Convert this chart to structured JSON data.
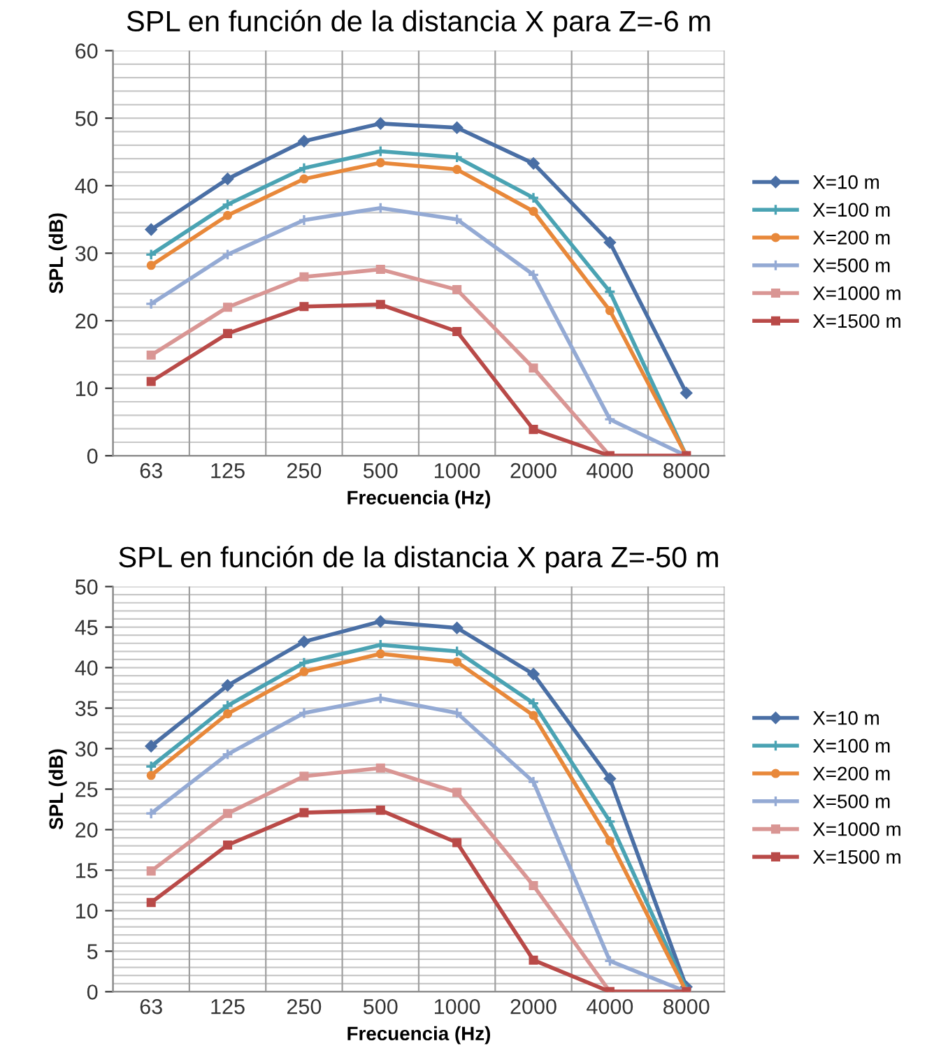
{
  "chart_data": [
    {
      "type": "line",
      "title": "SPL en función de la distancia X para Z=-6 m",
      "xlabel": "Frecuencia (Hz)",
      "ylabel": "SPL (dB)",
      "categories": [
        "63",
        "125",
        "250",
        "500",
        "1000",
        "2000",
        "4000",
        "8000"
      ],
      "ylim": [
        0,
        60
      ],
      "yticks": [
        0,
        {
          "value": 2,
          "label": null
        },
        {
          "value": 4,
          "label": null
        },
        {
          "value": 6,
          "label": null
        },
        {
          "value": 8,
          "label": null
        },
        10,
        {
          "value": 12,
          "label": null
        },
        {
          "value": 14,
          "label": null
        },
        {
          "value": 16,
          "label": null
        },
        {
          "value": 18,
          "label": null
        },
        20,
        {
          "value": 22,
          "label": null
        },
        {
          "value": 24,
          "label": null
        },
        {
          "value": 26,
          "label": null
        },
        {
          "value": 28,
          "label": null
        },
        30,
        {
          "value": 32,
          "label": null
        },
        {
          "value": 34,
          "label": null
        },
        {
          "value": 36,
          "label": null
        },
        {
          "value": 38,
          "label": null
        },
        40,
        {
          "value": 42,
          "label": null
        },
        {
          "value": 44,
          "label": null
        },
        {
          "value": 46,
          "label": null
        },
        {
          "value": 48,
          "label": null
        },
        50,
        {
          "value": 52,
          "label": null
        },
        {
          "value": 54,
          "label": null
        },
        {
          "value": 56,
          "label": null
        },
        {
          "value": 58,
          "label": null
        },
        60
      ],
      "grid": true,
      "legend": "right",
      "series": [
        {
          "name": "X=10 m",
          "color": "#4a6fa5",
          "marker": "diamond",
          "values": [
            33.5,
            41,
            46.6,
            49.2,
            48.6,
            43.3,
            31.6,
            9.3
          ]
        },
        {
          "name": "X=100 m",
          "color": "#4aa3b3",
          "marker": "cross",
          "values": [
            29.8,
            37.2,
            42.6,
            45.1,
            44.2,
            38.2,
            24.3,
            0
          ]
        },
        {
          "name": "X=200 m",
          "color": "#e8883a",
          "marker": "circle",
          "values": [
            28.2,
            35.6,
            41,
            43.4,
            42.4,
            36.2,
            21.5,
            0
          ]
        },
        {
          "name": "X=500 m",
          "color": "#94aad4",
          "marker": "cross",
          "values": [
            22.5,
            29.8,
            34.9,
            36.7,
            35,
            26.8,
            5.4,
            0
          ]
        },
        {
          "name": "X=1000 m",
          "color": "#d99694",
          "marker": "square",
          "values": [
            14.9,
            22,
            26.5,
            27.6,
            24.6,
            13,
            0,
            0
          ]
        },
        {
          "name": "X=1500 m",
          "color": "#b94a48",
          "marker": "square",
          "values": [
            11,
            18.1,
            22.1,
            22.4,
            18.4,
            3.9,
            0,
            0
          ]
        }
      ]
    },
    {
      "type": "line",
      "title": "SPL en función de la distancia X para Z=-50 m",
      "xlabel": "Frecuencia (Hz)",
      "ylabel": "SPL (dB)",
      "categories": [
        "63",
        "125",
        "250",
        "500",
        "1000",
        "2000",
        "4000",
        "8000"
      ],
      "ylim": [
        0,
        50
      ],
      "yticks": [
        0,
        {
          "value": 1,
          "label": null
        },
        {
          "value": 2,
          "label": null
        },
        {
          "value": 3,
          "label": null
        },
        {
          "value": 4,
          "label": null
        },
        5,
        {
          "value": 6,
          "label": null
        },
        {
          "value": 7,
          "label": null
        },
        {
          "value": 8,
          "label": null
        },
        {
          "value": 9,
          "label": null
        },
        10,
        {
          "value": 11,
          "label": null
        },
        {
          "value": 12,
          "label": null
        },
        {
          "value": 13,
          "label": null
        },
        {
          "value": 14,
          "label": null
        },
        15,
        {
          "value": 16,
          "label": null
        },
        {
          "value": 17,
          "label": null
        },
        {
          "value": 18,
          "label": null
        },
        {
          "value": 19,
          "label": null
        },
        20,
        {
          "value": 21,
          "label": null
        },
        {
          "value": 22,
          "label": null
        },
        {
          "value": 23,
          "label": null
        },
        {
          "value": 24,
          "label": null
        },
        25,
        {
          "value": 26,
          "label": null
        },
        {
          "value": 27,
          "label": null
        },
        {
          "value": 28,
          "label": null
        },
        {
          "value": 29,
          "label": null
        },
        30,
        {
          "value": 31,
          "label": null
        },
        {
          "value": 32,
          "label": null
        },
        {
          "value": 33,
          "label": null
        },
        {
          "value": 34,
          "label": null
        },
        35,
        {
          "value": 36,
          "label": null
        },
        {
          "value": 37,
          "label": null
        },
        {
          "value": 38,
          "label": null
        },
        {
          "value": 39,
          "label": null
        },
        40,
        {
          "value": 41,
          "label": null
        },
        {
          "value": 42,
          "label": null
        },
        {
          "value": 43,
          "label": null
        },
        {
          "value": 44,
          "label": null
        },
        45,
        {
          "value": 46,
          "label": null
        },
        {
          "value": 47,
          "label": null
        },
        {
          "value": 48,
          "label": null
        },
        {
          "value": 49,
          "label": null
        },
        50
      ],
      "grid": true,
      "legend": "right",
      "series": [
        {
          "name": "X=10 m",
          "color": "#4a6fa5",
          "marker": "diamond",
          "values": [
            30.3,
            37.8,
            43.2,
            45.7,
            44.9,
            39.2,
            26.3,
            0.6
          ]
        },
        {
          "name": "X=100 m",
          "color": "#4aa3b3",
          "marker": "cross",
          "values": [
            27.8,
            35.3,
            40.6,
            42.8,
            42,
            35.6,
            21,
            0.3
          ]
        },
        {
          "name": "X=200 m",
          "color": "#e8883a",
          "marker": "circle",
          "values": [
            26.7,
            34.3,
            39.5,
            41.7,
            40.7,
            34.1,
            18.6,
            0
          ]
        },
        {
          "name": "X=500 m",
          "color": "#94aad4",
          "marker": "cross",
          "values": [
            22,
            29.3,
            34.4,
            36.2,
            34.4,
            25.9,
            3.8,
            0
          ]
        },
        {
          "name": "X=1000 m",
          "color": "#d99694",
          "marker": "square",
          "values": [
            14.9,
            22,
            26.6,
            27.6,
            24.6,
            13.1,
            0,
            0
          ]
        },
        {
          "name": "X=1500 m",
          "color": "#b94a48",
          "marker": "square",
          "values": [
            11,
            18.1,
            22.1,
            22.4,
            18.4,
            3.9,
            0,
            0
          ]
        }
      ]
    }
  ]
}
